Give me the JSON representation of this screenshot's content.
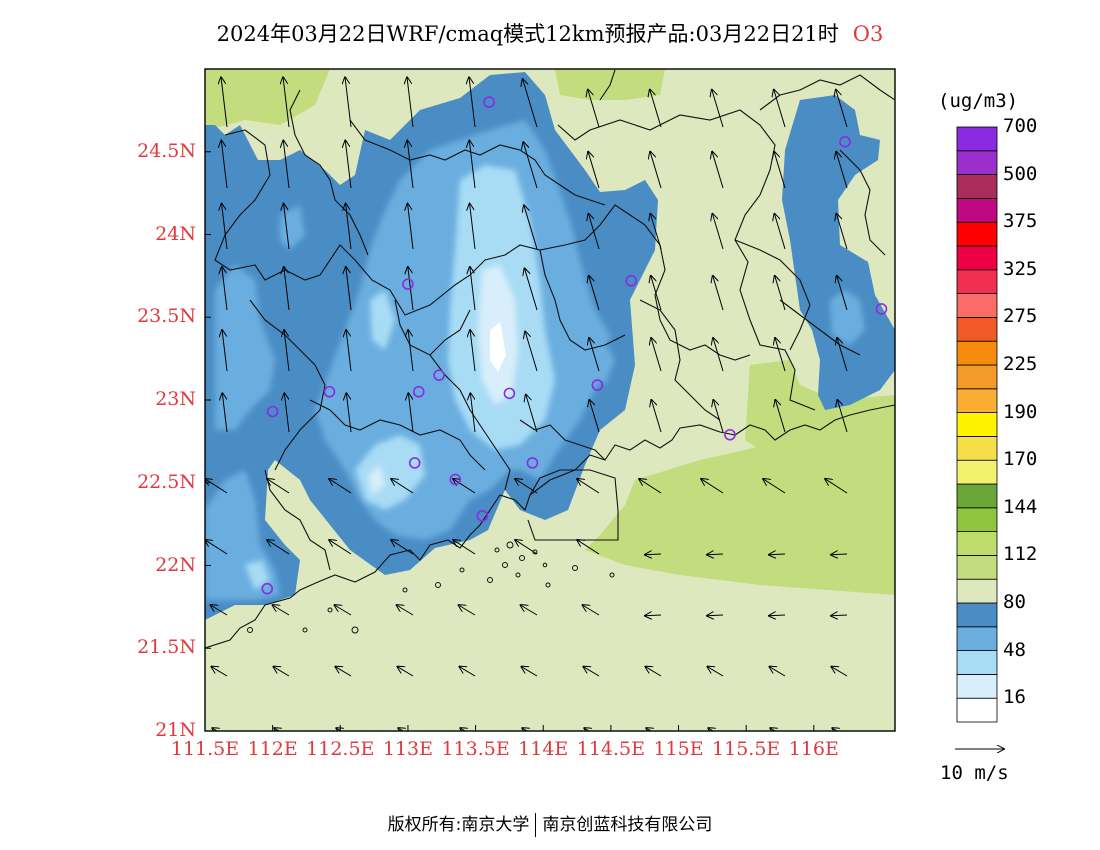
{
  "title": {
    "text": "2024年03月22日WRF/cmaq模式12km预报产品:03月22日21时",
    "species": "O3"
  },
  "colors": {
    "axis_label": "#e0393e",
    "station": "#8a2be2"
  },
  "units": "(ug/m3)",
  "colorbar": {
    "colors": [
      "#ffffff",
      "#d8eefa",
      "#a8dcf5",
      "#6aaedf",
      "#4a8dc5",
      "#dde8bf",
      "#c2dc7e",
      "#bedc6c",
      "#8ec53e",
      "#6aa637",
      "#f2f26f",
      "#f5df48",
      "#fff200",
      "#f9ae33",
      "#f39a29",
      "#f68a0d",
      "#ef5a27",
      "#f96c68",
      "#f0304e",
      "#ee0045",
      "#ff0000",
      "#c10883",
      "#a92c5b",
      "#9a2fcb",
      "#8a2be2"
    ],
    "labels": [
      "16",
      "48",
      "80",
      "112",
      "144",
      "170",
      "190",
      "225",
      "275",
      "325",
      "375",
      "500",
      "700"
    ]
  },
  "wind_reference": "10 m/s",
  "lat_labels": [
    "24.5N",
    "24N",
    "23.5N",
    "23N",
    "22.5N",
    "22N",
    "21.5N",
    "21N"
  ],
  "lon_labels": [
    "111.5E",
    "112E",
    "112.5E",
    "113E",
    "113.5E",
    "114E",
    "114.5E",
    "115E",
    "115.5E",
    "116E"
  ],
  "footer": {
    "left": "版权所有:南京大学",
    "right": "南京创蓝科技有限公司"
  },
  "map_extent": {
    "lon_min": 111.5,
    "lon_max": 116.6,
    "lat_min": 21,
    "lat_max": 25
  },
  "stations": [
    {
      "lon": 113.6,
      "lat": 24.8
    },
    {
      "lon": 113.0,
      "lat": 23.7
    },
    {
      "lon": 112.0,
      "lat": 22.93
    },
    {
      "lon": 112.42,
      "lat": 23.05
    },
    {
      "lon": 113.08,
      "lat": 23.05
    },
    {
      "lon": 113.23,
      "lat": 23.15
    },
    {
      "lon": 113.75,
      "lat": 23.04
    },
    {
      "lon": 113.05,
      "lat": 22.62
    },
    {
      "lon": 113.35,
      "lat": 22.52
    },
    {
      "lon": 113.55,
      "lat": 22.3
    },
    {
      "lon": 113.92,
      "lat": 22.62
    },
    {
      "lon": 114.4,
      "lat": 23.09
    },
    {
      "lon": 114.65,
      "lat": 23.72
    },
    {
      "lon": 115.38,
      "lat": 22.79
    },
    {
      "lon": 111.96,
      "lat": 21.86
    },
    {
      "lon": 116.23,
      "lat": 24.56
    },
    {
      "lon": 116.5,
      "lat": 23.55
    }
  ]
}
